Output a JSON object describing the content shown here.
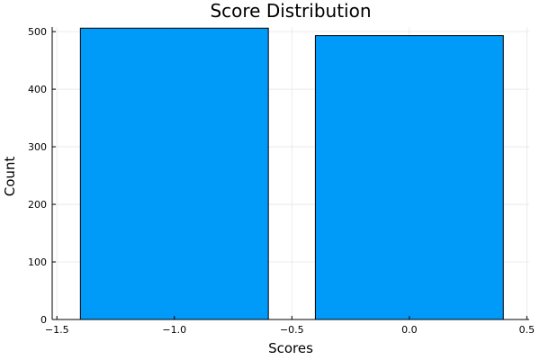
{
  "chart_data": {
    "type": "bar",
    "title": "Score Distribution",
    "xlabel": "Scores",
    "ylabel": "Count",
    "bars": [
      {
        "x_start": -1.4,
        "x_end": -0.6,
        "value": 506
      },
      {
        "x_start": -0.4,
        "x_end": 0.4,
        "value": 493
      }
    ],
    "xlim": [
      -1.52,
      0.51
    ],
    "ylim": [
      0,
      508
    ],
    "x_ticks": [
      -1.5,
      -1.0,
      -0.5,
      0.0,
      0.5
    ],
    "x_tick_labels": [
      "−1.5",
      "−1.0",
      "−0.5",
      "0.0",
      "0.5"
    ],
    "y_ticks": [
      0,
      100,
      200,
      300,
      400,
      500
    ],
    "y_tick_labels": [
      "0",
      "100",
      "200",
      "300",
      "400",
      "500"
    ],
    "grid": true,
    "legend": "none",
    "bar_color": "#009af9",
    "edge_color": "#000000"
  }
}
